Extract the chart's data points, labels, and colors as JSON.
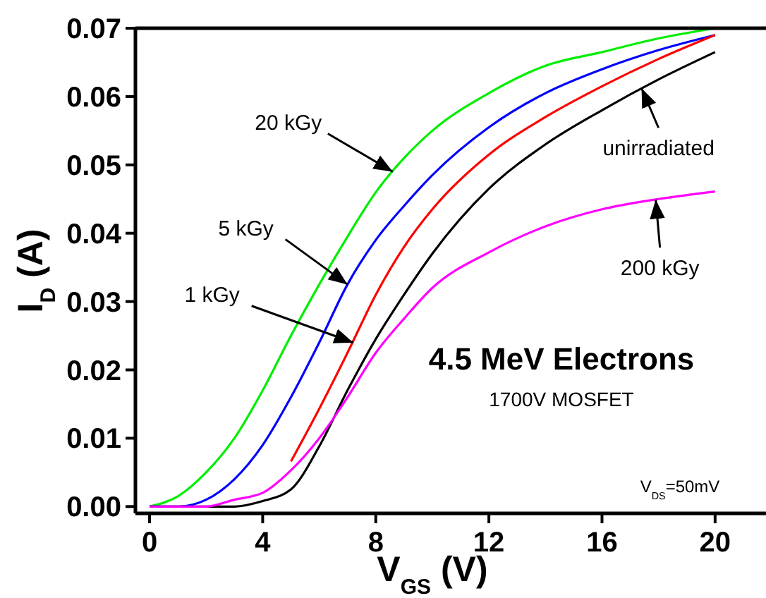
{
  "chart_data": {
    "type": "line",
    "xlabel": "V$_{GS}$ (V)",
    "ylabel": "I$_{D}$ (A)",
    "xlim": [
      -0.5,
      21.8
    ],
    "ylim": [
      -0.001,
      0.07
    ],
    "xticks": [
      0,
      4,
      8,
      12,
      16,
      20
    ],
    "yticks": [
      {
        "value": 0,
        "label": "0.00"
      },
      {
        "value": 0.01,
        "label": "0.01"
      },
      {
        "value": 0.02,
        "label": "0.02"
      },
      {
        "value": 0.03,
        "label": "0.03"
      },
      {
        "value": 0.04,
        "label": "0.04"
      },
      {
        "value": 0.05,
        "label": "0.05"
      },
      {
        "value": 0.06,
        "label": "0.06"
      },
      {
        "value": 0.07,
        "label": "0.07"
      }
    ],
    "grid": false,
    "marker": "none",
    "line_style": "solid",
    "x": [
      0,
      1,
      2,
      3,
      4,
      5,
      6,
      7,
      8,
      9,
      10,
      12,
      14,
      16,
      18,
      20
    ],
    "series": [
      {
        "color": "#00ee00",
        "values": [
          0,
          0.0015,
          0.005,
          0.01,
          0.017,
          0.025,
          0.0325,
          0.0395,
          0.046,
          0.051,
          0.055,
          0.0605,
          0.0645,
          0.0665,
          0.0685,
          0.07
        ]
      },
      {
        "color": "#0000ff",
        "values": [
          0,
          0,
          0.001,
          0.004,
          0.009,
          0.016,
          0.024,
          0.0325,
          0.039,
          0.044,
          0.0485,
          0.0555,
          0.0605,
          0.064,
          0.0668,
          0.069
        ]
      },
      {
        "color": "#ff0000",
        "values": [
          null,
          null,
          null,
          null,
          null,
          0.0066,
          0.0143,
          0.0225,
          0.031,
          0.038,
          0.0435,
          0.0515,
          0.057,
          0.0615,
          0.0655,
          0.069
        ]
      },
      {
        "color": "#000000",
        "values": [
          0,
          0,
          0,
          0,
          0.0008,
          0.0025,
          0.0088,
          0.017,
          0.0245,
          0.031,
          0.037,
          0.0465,
          0.053,
          0.058,
          0.0625,
          0.0665
        ]
      },
      {
        "color": "#ff00ff",
        "values": [
          0,
          0,
          0,
          0.001,
          0.002,
          0.0053,
          0.01,
          0.016,
          0.0225,
          0.0275,
          0.032,
          0.0372,
          0.041,
          0.0435,
          0.045,
          0.0461
        ]
      }
    ],
    "annotations": [
      {
        "text": "20 kGy",
        "x": 8.6,
        "y": 0.049
      },
      {
        "text": "5 kGy",
        "x": 7,
        "y": 0.0325
      },
      {
        "text": "1 kGy",
        "x": 7.2,
        "y": 0.024
      },
      {
        "text": "unirradiated",
        "x": 17.4,
        "y": 0.0612
      },
      {
        "text": "200 kGy",
        "x": 17.9,
        "y": 0.0449
      },
      "4.5 MeV Electrons",
      "1700V MOSFET",
      "V$_{DS}$=50mV"
    ]
  }
}
